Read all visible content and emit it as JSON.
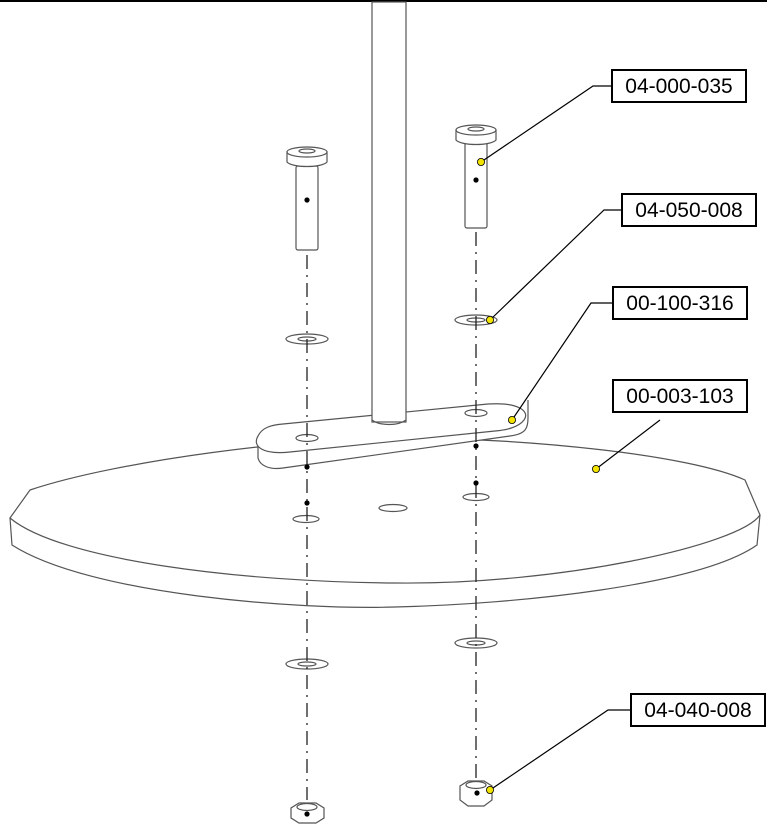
{
  "part_numbers": {
    "cap_screw": "04-000-035",
    "washer": "04-050-008",
    "mounting_bracket": "00-100-316",
    "base_plate": "00-003-103",
    "lock_nut": "04-040-008"
  },
  "colors": {
    "line": "#000000",
    "part_edge": "#555555",
    "dashdot": "#222222",
    "leader_dot": "#f2e400",
    "background": "#ffffff"
  }
}
